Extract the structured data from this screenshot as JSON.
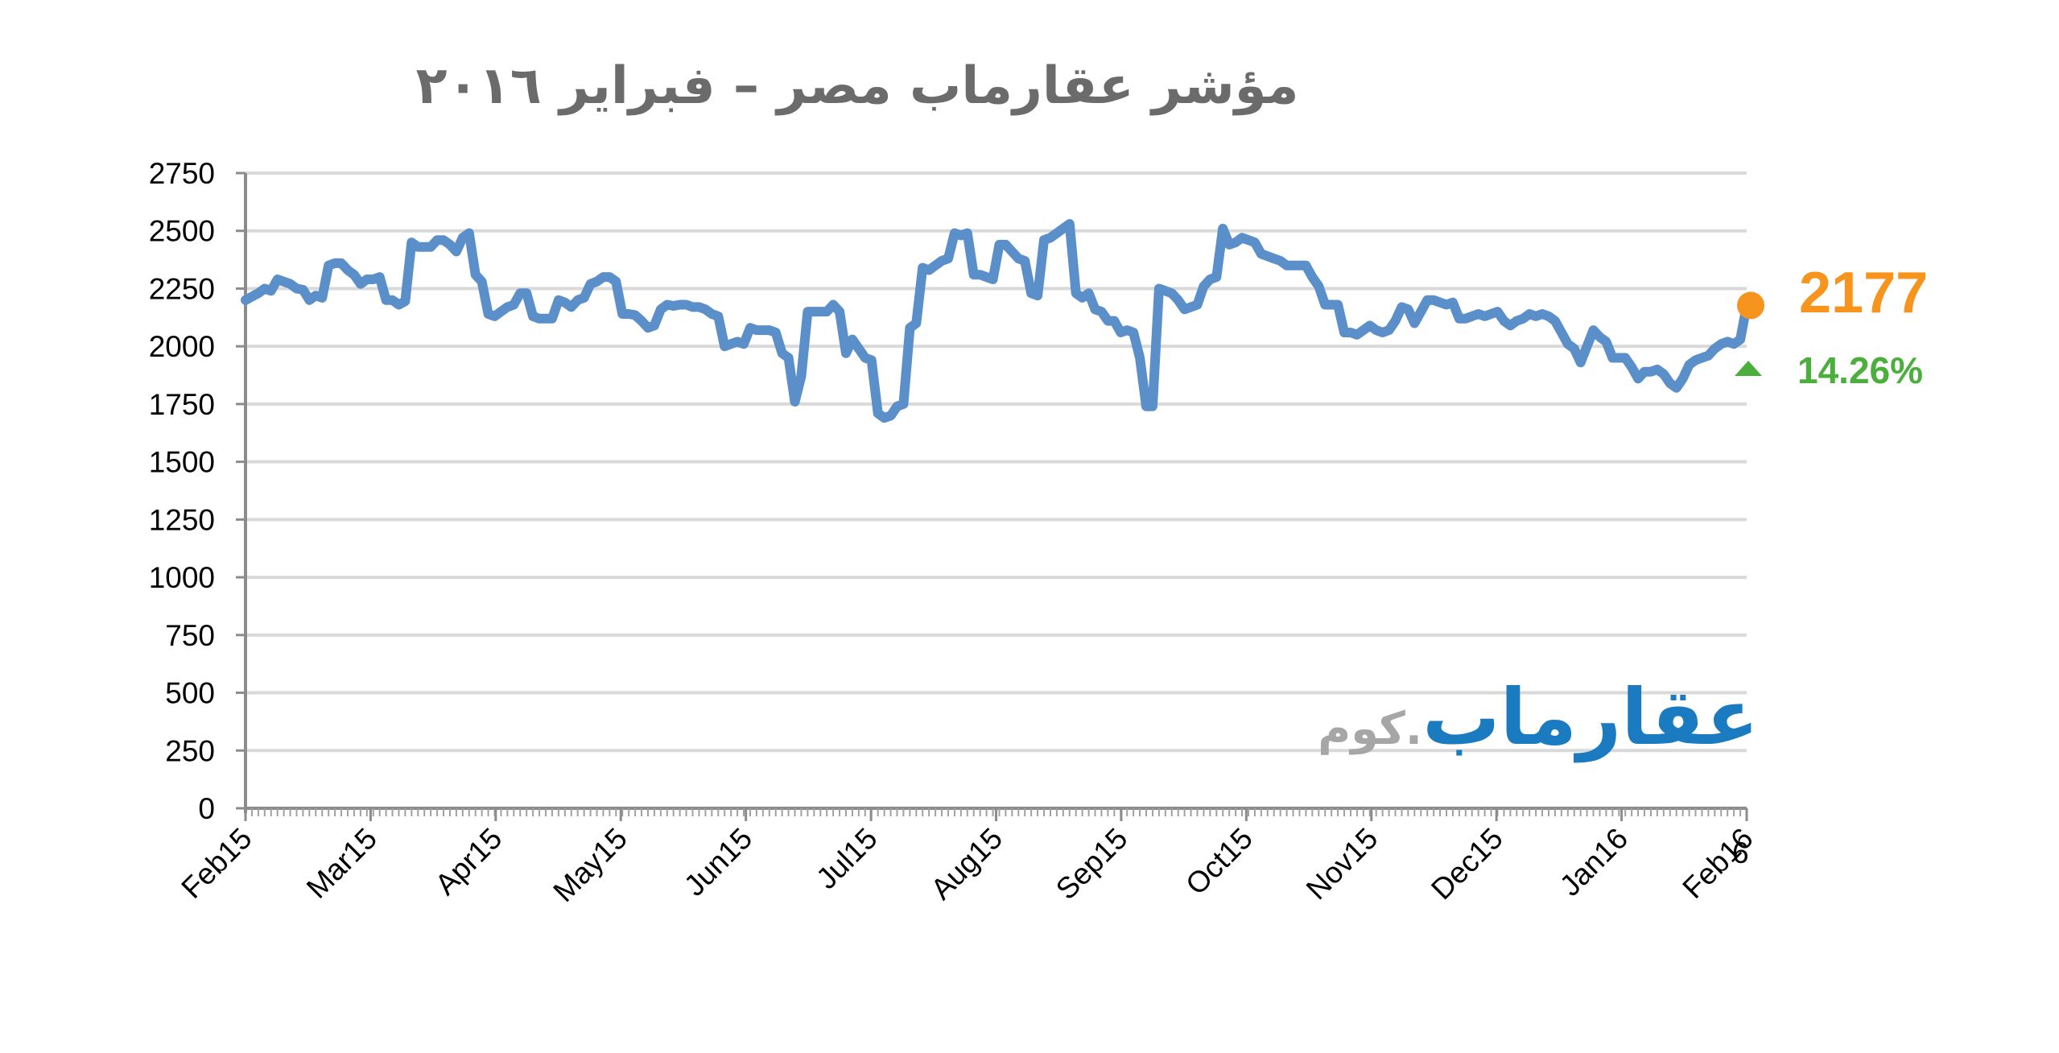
{
  "title": "مؤشر عقارماب مصر – فبراير ٢٠١٦",
  "current": {
    "value": "2177",
    "change": "14.26%",
    "value_color": "#f7941d",
    "change_color": "#4caf3d",
    "change_icon": "triangle-up-icon"
  },
  "logo": {
    "main": "عقارماب",
    "sub": ".كوم",
    "main_color": "#1a7bc0",
    "sub_color": "#a6a6a6"
  },
  "chart_data": {
    "type": "line",
    "title": "مؤشر عقارماب مصر – فبراير ٢٠١٦",
    "xlabel": "",
    "ylabel": "",
    "ylim": [
      0,
      2750
    ],
    "yticks": [
      "0",
      "250",
      "500",
      "750",
      "1000",
      "1250",
      "1500",
      "1750",
      "2000",
      "2250",
      "2500",
      "2750"
    ],
    "xticks": [
      "Feb15",
      "Mar15",
      "Apr15",
      "May15",
      "Jun15",
      "Jul15",
      "Aug15",
      "Sep15",
      "Oct15",
      "Nov15",
      "Dec15",
      "Jan16",
      "Feb16"
    ],
    "extra_tick_label": "6",
    "grid": true,
    "line_color": "#5b8fc9",
    "series": [
      {
        "values": [
          2200,
          2215,
          2230,
          2250,
          2240,
          2290,
          2280,
          2270,
          2250,
          2245,
          2200,
          2220,
          2210,
          2350,
          2360,
          2360,
          2330,
          2310,
          2270,
          2290,
          2290,
          2300,
          2200,
          2200,
          2180,
          2195,
          2450,
          2430,
          2430,
          2430,
          2460,
          2460,
          2440,
          2410,
          2470,
          2490,
          2310,
          2280,
          2140,
          2130,
          2150,
          2170,
          2180,
          2230,
          2230,
          2130,
          2120,
          2120,
          2120,
          2200,
          2190,
          2170,
          2200,
          2210,
          2270,
          2280,
          2300,
          2300,
          2280,
          2140,
          2140,
          2135,
          2110,
          2080,
          2090,
          2160,
          2180,
          2175,
          2180,
          2180,
          2170,
          2170,
          2160,
          2140,
          2130,
          2000,
          2010,
          2020,
          2010,
          2080,
          2070,
          2070,
          2070,
          2060,
          1970,
          1950,
          1760,
          1870,
          2150,
          2150,
          2150,
          2150,
          2180,
          2150,
          1970,
          2030,
          1990,
          1950,
          1940,
          1710,
          1690,
          1700,
          1740,
          1750,
          2080,
          2100,
          2340,
          2330,
          2350,
          2370,
          2380,
          2490,
          2480,
          2490,
          2310,
          2310,
          2300,
          2290,
          2440,
          2440,
          2410,
          2380,
          2370,
          2230,
          2220,
          2460,
          2470,
          2490,
          2510,
          2530,
          2230,
          2210,
          2230,
          2160,
          2150,
          2110,
          2110,
          2060,
          2070,
          2060,
          1950,
          1740,
          1740,
          2250,
          2240,
          2230,
          2200,
          2160,
          2170,
          2180,
          2260,
          2290,
          2300,
          2510,
          2440,
          2450,
          2470,
          2460,
          2450,
          2400,
          2390,
          2380,
          2370,
          2350,
          2350,
          2350,
          2350,
          2300,
          2260,
          2180,
          2180,
          2180,
          2060,
          2060,
          2050,
          2070,
          2090,
          2070,
          2060,
          2070,
          2110,
          2170,
          2160,
          2100,
          2150,
          2200,
          2200,
          2190,
          2180,
          2190,
          2120,
          2120,
          2130,
          2140,
          2130,
          2140,
          2150,
          2110,
          2090,
          2110,
          2120,
          2140,
          2130,
          2140,
          2130,
          2110,
          2060,
          2010,
          1990,
          1930,
          2000,
          2070,
          2040,
          2020,
          1950,
          1950,
          1950,
          1910,
          1860,
          1890,
          1890,
          1900,
          1880,
          1840,
          1820,
          1860,
          1920,
          1940,
          1950,
          1960,
          1990,
          2010,
          2020,
          2010,
          2030,
          2177
        ]
      }
    ]
  }
}
